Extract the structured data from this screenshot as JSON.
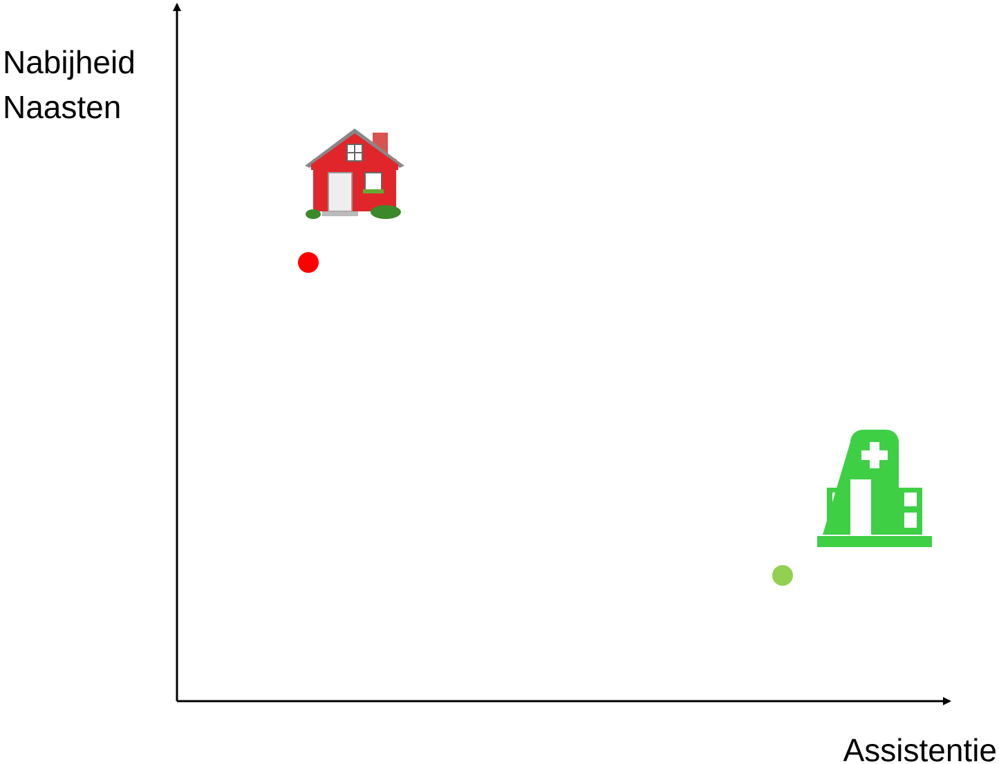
{
  "y_axis": {
    "label_lines": [
      "Nabijheid",
      "Naasten"
    ]
  },
  "x_axis": {
    "label": "Assistentie"
  }
}
